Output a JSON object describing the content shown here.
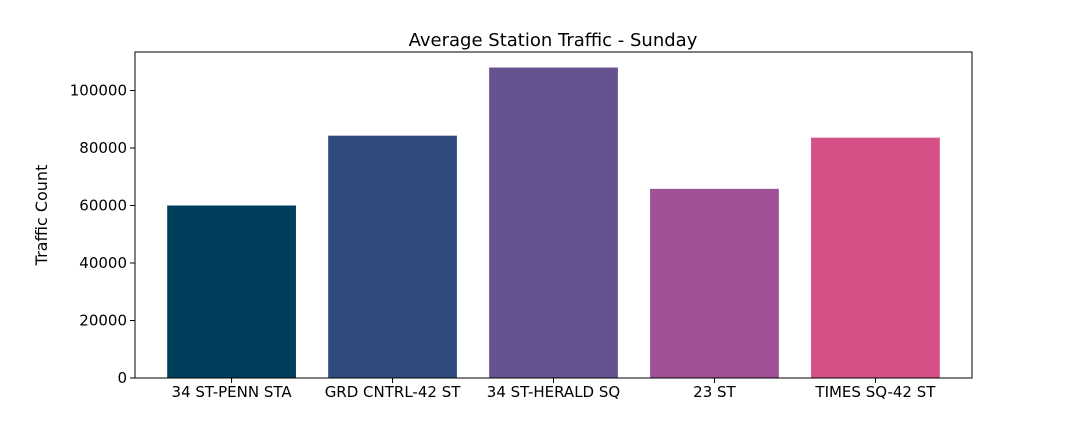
{
  "chart_data": {
    "type": "bar",
    "title": "Average Station Traffic - Sunday",
    "xlabel": "",
    "ylabel": "Traffic Count",
    "categories": [
      "34 ST-PENN STA",
      "GRD CNTRL-42 ST",
      "34 ST-HERALD SQ",
      "23 ST",
      "TIMES SQ-42 ST"
    ],
    "values": [
      60000,
      84300,
      108000,
      65800,
      83600
    ],
    "colors": [
      "#003f5c",
      "#2f4b7c",
      "#665191",
      "#a05195",
      "#d45087"
    ],
    "ylim": [
      0,
      113400
    ],
    "yticks": [
      0,
      20000,
      40000,
      60000,
      80000,
      100000
    ],
    "grid": false,
    "legend": "none"
  }
}
